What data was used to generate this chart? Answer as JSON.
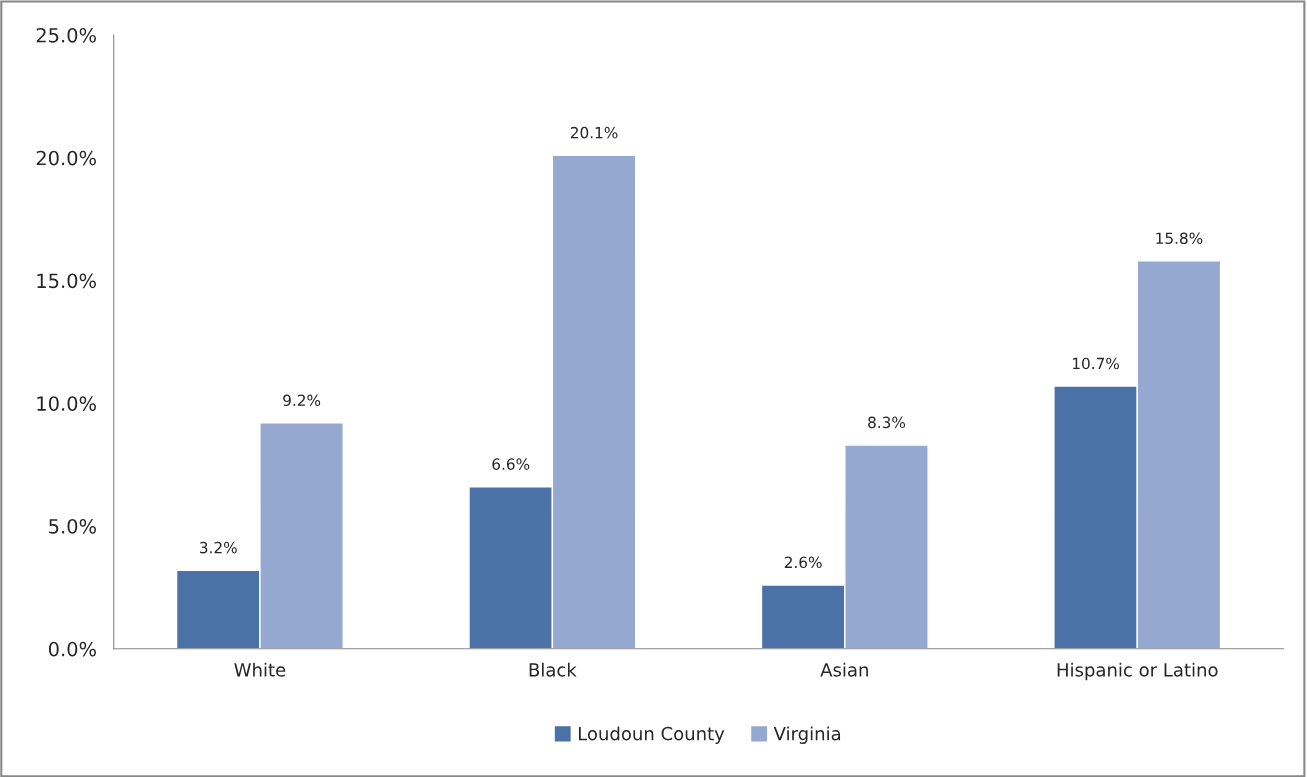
{
  "chart_data": {
    "type": "bar",
    "categories": [
      "White",
      "Black",
      "Asian",
      "Hispanic or Latino"
    ],
    "series": [
      {
        "name": "Loudoun County",
        "color": "#4a72a6",
        "values": [
          3.2,
          6.6,
          2.6,
          10.7
        ],
        "value_labels": [
          "3.2%",
          "6.6%",
          "2.6%",
          "10.7%"
        ]
      },
      {
        "name": "Virginia",
        "color": "#95a9d0",
        "values": [
          9.2,
          20.1,
          8.3,
          15.8
        ],
        "value_labels": [
          "9.2%",
          "20.1%",
          "8.3%",
          "15.8%"
        ]
      }
    ],
    "ylim": [
      0,
      25
    ],
    "yticks": [
      {
        "value": 0,
        "label": "0.0%"
      },
      {
        "value": 5,
        "label": "5.0%"
      },
      {
        "value": 10,
        "label": "10.0%"
      },
      {
        "value": 15,
        "label": "15.0%"
      },
      {
        "value": 20,
        "label": "20.0%"
      },
      {
        "value": 25,
        "label": "25.0%"
      }
    ],
    "grid": false,
    "legend": "bottom"
  }
}
